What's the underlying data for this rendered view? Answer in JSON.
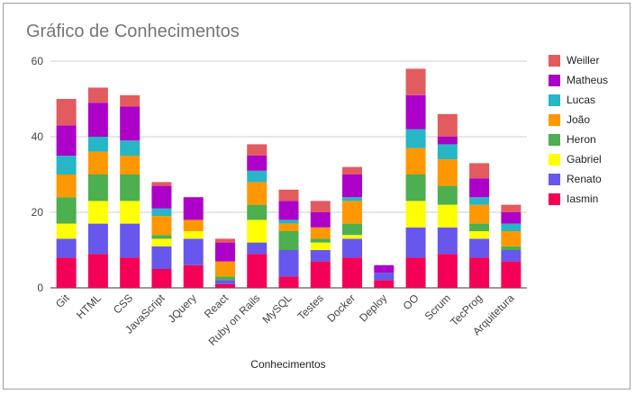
{
  "chart_data": {
    "type": "bar",
    "stacked": true,
    "title": "Gráfico de Conhecimentos",
    "xlabel": "Conhecimentos",
    "ylabel": "",
    "ylim": [
      0,
      60
    ],
    "yticks": [
      "0",
      "20",
      "40",
      "60"
    ],
    "grid": true,
    "legend_position": "right",
    "categories": [
      "Git",
      "HTML",
      "CSS",
      "JavaScript",
      "JQuery",
      "React",
      "Ruby on Rails",
      "MySQL",
      "Testes",
      "Docker",
      "Deploy",
      "OO",
      "Scrum",
      "TecProg",
      "Arquitetura"
    ],
    "series": [
      {
        "name": "Iasmin",
        "color": "#f50057",
        "values": [
          8,
          9,
          8,
          5,
          6,
          1,
          9,
          3,
          7,
          8,
          2,
          8,
          9,
          8,
          7
        ]
      },
      {
        "name": "Renato",
        "color": "#6757ec",
        "values": [
          5,
          8,
          9,
          6,
          7,
          1,
          3,
          7,
          3,
          5,
          2,
          8,
          7,
          5,
          3
        ]
      },
      {
        "name": "Gabriel",
        "color": "#ffff00",
        "values": [
          4,
          6,
          6,
          2,
          2,
          0,
          6,
          0,
          2,
          1,
          0,
          7,
          6,
          2,
          0
        ]
      },
      {
        "name": "Heron",
        "color": "#4caf50",
        "values": [
          7,
          7,
          7,
          1,
          0,
          1,
          4,
          5,
          1,
          3,
          0,
          7,
          5,
          2,
          1
        ]
      },
      {
        "name": "João",
        "color": "#ff9800",
        "values": [
          6,
          6,
          5,
          5,
          3,
          4,
          6,
          2,
          3,
          6,
          0,
          7,
          7,
          5,
          4
        ]
      },
      {
        "name": "Lucas",
        "color": "#26b6c6",
        "values": [
          5,
          4,
          4,
          2,
          0,
          0,
          3,
          1,
          0,
          1,
          0,
          5,
          4,
          2,
          2
        ]
      },
      {
        "name": "Matheus",
        "color": "#ad00c9",
        "values": [
          8,
          9,
          9,
          6,
          6,
          5,
          4,
          5,
          4,
          6,
          2,
          9,
          2,
          5,
          3
        ]
      },
      {
        "name": "Weiller",
        "color": "#e25b5f",
        "values": [
          7,
          4,
          3,
          1,
          0,
          1,
          3,
          3,
          3,
          2,
          0,
          7,
          6,
          4,
          2
        ]
      }
    ]
  }
}
